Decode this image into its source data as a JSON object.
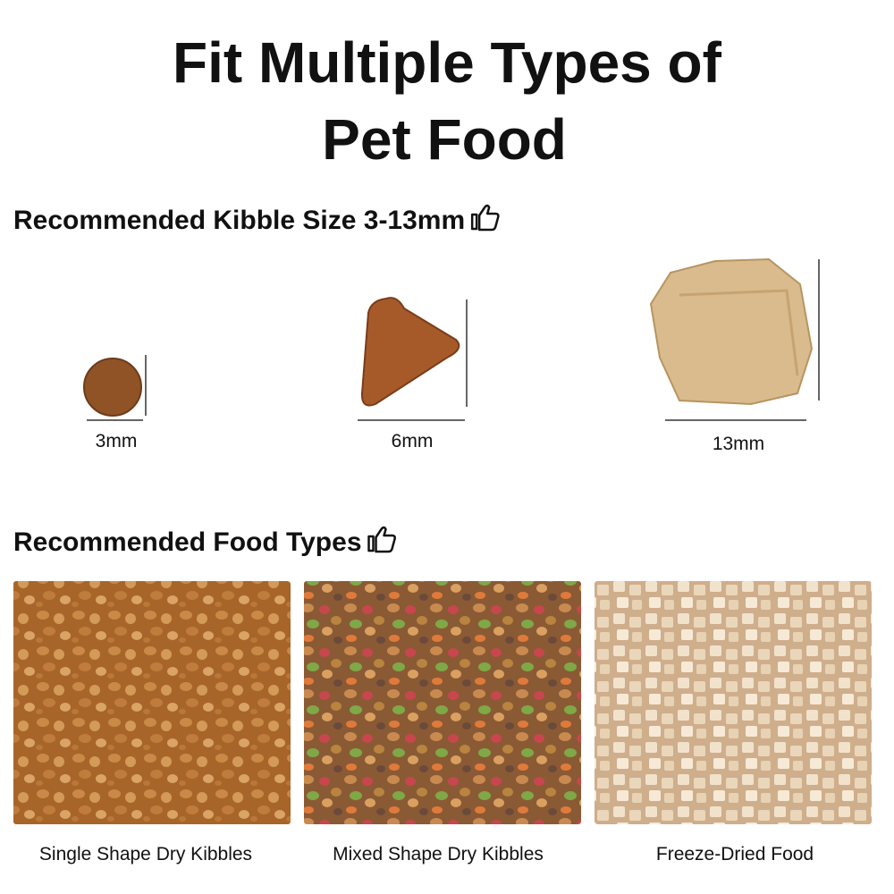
{
  "header": {
    "title_lines": [
      "Fit Multiple Types of",
      "Pet Food"
    ]
  },
  "kibble_section": {
    "heading": "Recommended Kibble Size 3-13mm",
    "sizes": [
      {
        "label": "3mm"
      },
      {
        "label": "6mm"
      },
      {
        "label": "13mm"
      }
    ]
  },
  "food_section": {
    "heading": "Recommended Food Types",
    "items": [
      {
        "label": "Single Shape Dry Kibbles"
      },
      {
        "label": "Mixed Shape Dry Kibbles"
      },
      {
        "label": "Freeze-Dried Food"
      }
    ]
  }
}
